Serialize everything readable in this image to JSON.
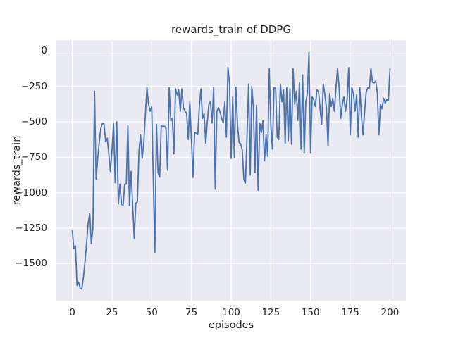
{
  "figure": {
    "title": "rewards_train of DDPG",
    "xlabel": "episodes",
    "ylabel": "rewards_train"
  },
  "colors": {
    "line": "#4c72b0",
    "plot_background": "#eaeaf2",
    "grid": "#ffffff",
    "figure_background": "#ffffff",
    "text": "#262626"
  },
  "chart_data": {
    "type": "line",
    "title": "rewards_train of DDPG",
    "xlabel": "episodes",
    "ylabel": "rewards_train",
    "legend": "none",
    "grid": true,
    "xlim": [
      -10,
      210
    ],
    "ylim": [
      -1763,
      74
    ],
    "xtick_values": [
      0,
      25,
      50,
      75,
      100,
      125,
      150,
      175,
      200
    ],
    "xtick_labels": [
      "0",
      "25",
      "50",
      "75",
      "100",
      "125",
      "150",
      "175",
      "200"
    ],
    "ytick_values": [
      0,
      -250,
      -500,
      -750,
      -1000,
      -1250,
      -1500
    ],
    "ytick_labels": [
      "0",
      "−250",
      "−500",
      "−750",
      "−1000",
      "−1250",
      "−1500"
    ],
    "x_start": 0,
    "x_step": 1,
    "series": [
      {
        "name": "rewards_train",
        "values": [
          -1265,
          -1395,
          -1375,
          -1655,
          -1630,
          -1675,
          -1680,
          -1600,
          -1490,
          -1360,
          -1210,
          -1150,
          -1360,
          -1250,
          -283,
          -905,
          -760,
          -640,
          -545,
          -510,
          -515,
          -640,
          -615,
          -725,
          -850,
          -700,
          -510,
          -930,
          -500,
          -1080,
          -940,
          -1081,
          -1090,
          -940,
          -940,
          -527,
          -1090,
          -850,
          -1080,
          -1322,
          -1073,
          -1065,
          -700,
          -592,
          -758,
          -650,
          -450,
          -258,
          -375,
          -425,
          -392,
          -900,
          -1425,
          -517,
          -858,
          -890,
          -525,
          -535,
          -530,
          -545,
          -842,
          -258,
          -492,
          -475,
          -725,
          -267,
          -310,
          -275,
          -425,
          -267,
          -400,
          -425,
          -440,
          -625,
          -358,
          -625,
          -892,
          -575,
          -580,
          -590,
          -392,
          -267,
          -475,
          -442,
          -650,
          -500,
          -375,
          -358,
          -508,
          -258,
          -975,
          -425,
          -400,
          -430,
          -475,
          -508,
          -360,
          -608,
          -117,
          -233,
          -758,
          -325,
          -750,
          -255,
          -525,
          -645,
          -655,
          -700,
          -908,
          -933,
          -600,
          -233,
          -875,
          -250,
          -392,
          -858,
          -383,
          -983,
          -508,
          -575,
          -492,
          -775,
          -592,
          -742,
          -125,
          -525,
          -692,
          -258,
          -262,
          -608,
          -625,
          -233,
          -358,
          -275,
          -650,
          -258,
          -633,
          -267,
          -658,
          -125,
          -375,
          -283,
          -490,
          -225,
          -692,
          -167,
          -717,
          -358,
          -300,
          -10,
          -717,
          -325,
          -342,
          -392,
          -275,
          -283,
          -408,
          -517,
          -233,
          -308,
          -400,
          -667,
          -300,
          -392,
          -333,
          -425,
          -258,
          -125,
          -258,
          -475,
          -375,
          -325,
          -425,
          -342,
          -117,
          -592,
          -258,
          -300,
          -425,
          -308,
          -608,
          -258,
          -458,
          -592,
          -433,
          -292,
          -258,
          -262,
          -125,
          -222,
          -225,
          -212,
          -290,
          -592,
          -375,
          -408,
          -333,
          -367,
          -342,
          -350,
          -125
        ]
      }
    ]
  }
}
